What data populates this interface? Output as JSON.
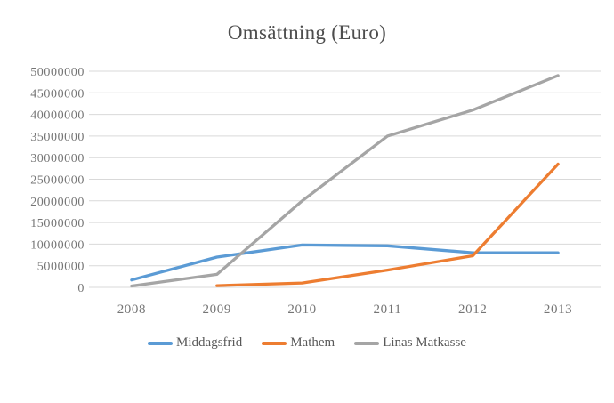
{
  "chart_data": {
    "type": "line",
    "title": "Omsättning (Euro)",
    "categories": [
      "2008",
      "2009",
      "2010",
      "2011",
      "2012",
      "2013"
    ],
    "series": [
      {
        "name": "Middagsfrid",
        "color": "#5B9BD5",
        "values": [
          1700000,
          7000000,
          9800000,
          9600000,
          8000000,
          8000000
        ]
      },
      {
        "name": "Mathem",
        "color": "#ED7D31",
        "values": [
          null,
          400000,
          1000000,
          4000000,
          7300000,
          28500000
        ]
      },
      {
        "name": "Linas Matkasse",
        "color": "#A5A5A5",
        "values": [
          300000,
          3000000,
          20000000,
          35000000,
          41000000,
          49000000
        ]
      }
    ],
    "xlabel": "",
    "ylabel": "",
    "ylim": [
      0,
      50000000
    ],
    "ytick_step": 5000000,
    "ytick_labels": [
      "0",
      "5000000",
      "10000000",
      "15000000",
      "20000000",
      "25000000",
      "30000000",
      "35000000",
      "40000000",
      "45000000",
      "50000000"
    ],
    "grid": "horizontal",
    "legend_position": "bottom",
    "colors": {
      "gridline": "#D9D9D9",
      "axis_label": "#757575",
      "title": "#4d4d4d",
      "legend_text": "#595959",
      "background": "#ffffff"
    }
  }
}
